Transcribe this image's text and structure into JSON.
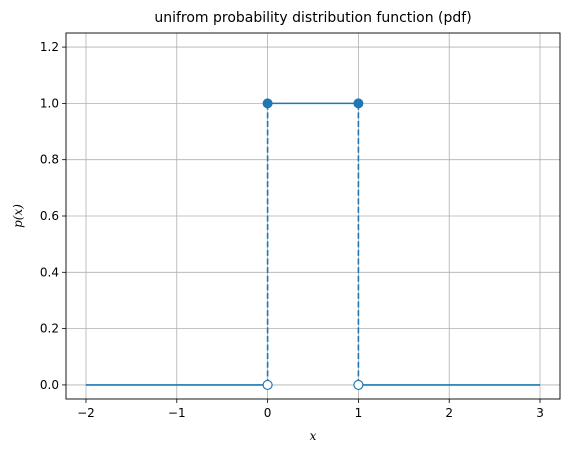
{
  "chart_data": {
    "type": "line",
    "title": "unifrom probability distribution function (pdf)",
    "xlabel": "x",
    "ylabel": "p(x)",
    "xlim": [
      -2.22,
      3.22
    ],
    "ylim": [
      -0.05,
      1.25
    ],
    "grid": true,
    "color": "#1f77b4",
    "x_ticks": [
      {
        "value": -2,
        "label": "−2"
      },
      {
        "value": -1,
        "label": "−1"
      },
      {
        "value": 0,
        "label": "0"
      },
      {
        "value": 1,
        "label": "1"
      },
      {
        "value": 2,
        "label": "2"
      },
      {
        "value": 3,
        "label": "3"
      }
    ],
    "y_ticks": [
      {
        "value": 0.0,
        "label": "0.0"
      },
      {
        "value": 0.2,
        "label": "0.2"
      },
      {
        "value": 0.4,
        "label": "0.4"
      },
      {
        "value": 0.6,
        "label": "0.6"
      },
      {
        "value": 0.8,
        "label": "0.8"
      },
      {
        "value": 1.0,
        "label": "1.0"
      },
      {
        "value": 1.2,
        "label": "1.2"
      }
    ],
    "solid_segments": [
      {
        "name": "left-zero",
        "x": [
          -2,
          0
        ],
        "y": [
          0,
          0
        ]
      },
      {
        "name": "top",
        "x": [
          0,
          1
        ],
        "y": [
          1,
          1
        ]
      },
      {
        "name": "right-zero",
        "x": [
          1,
          3
        ],
        "y": [
          0,
          0
        ]
      }
    ],
    "dashed_segments": [
      {
        "name": "left-edge",
        "x": [
          0,
          0
        ],
        "y": [
          0,
          1
        ]
      },
      {
        "name": "right-edge",
        "x": [
          1,
          1
        ],
        "y": [
          0,
          1
        ]
      }
    ],
    "filled_points": [
      {
        "x": 0,
        "y": 1
      },
      {
        "x": 1,
        "y": 1
      }
    ],
    "open_points": [
      {
        "x": 0,
        "y": 0
      },
      {
        "x": 1,
        "y": 0
      }
    ]
  }
}
